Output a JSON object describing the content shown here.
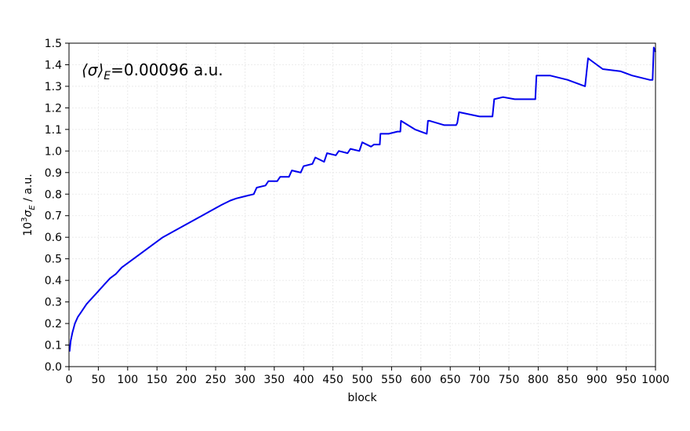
{
  "chart_data": {
    "type": "line",
    "title": "",
    "xlabel": "block",
    "ylabel_prefix": "10",
    "ylabel_exp": "3",
    "ylabel_sigma": "σ",
    "ylabel_sub": "E",
    "ylabel_unit": " / a.u.",
    "annotation": {
      "open": "⟨σ⟩",
      "sub": "E",
      "value": "=0.00096 a.u."
    },
    "xlim": [
      0,
      1000
    ],
    "ylim": [
      0,
      1.5
    ],
    "xticks": [
      0,
      50,
      100,
      150,
      200,
      250,
      300,
      350,
      400,
      450,
      500,
      550,
      600,
      650,
      700,
      750,
      800,
      850,
      900,
      950,
      1000
    ],
    "xtick_labels": [
      "0",
      "50",
      "100",
      "150",
      "200",
      "250",
      "300",
      "350",
      "400",
      "450",
      "500",
      "550",
      "600",
      "650",
      "700",
      "750",
      "800",
      "850",
      "900",
      "950",
      "1000"
    ],
    "yticks": [
      0,
      0.1,
      0.2,
      0.3,
      0.4,
      0.5,
      0.6,
      0.7,
      0.8,
      0.9,
      1.0,
      1.1,
      1.2,
      1.3,
      1.4,
      1.5
    ],
    "ytick_labels": [
      "0.0",
      "0.1",
      "0.2",
      "0.3",
      "0.4",
      "0.5",
      "0.6",
      "0.7",
      "0.8",
      "0.9",
      "1.0",
      "1.1",
      "1.2",
      "1.3",
      "1.4",
      "1.5"
    ],
    "grid": true,
    "series": [
      {
        "color": "#0000ee",
        "x": [
          1,
          3,
          6,
          10,
          15,
          20,
          30,
          40,
          50,
          60,
          70,
          80,
          90,
          100,
          120,
          140,
          160,
          180,
          200,
          220,
          240,
          260,
          275,
          285,
          300,
          315,
          320,
          335,
          340,
          355,
          360,
          375,
          380,
          395,
          400,
          415,
          420,
          435,
          440,
          455,
          460,
          475,
          480,
          495,
          500,
          515,
          520,
          530,
          531,
          545,
          560,
          565,
          566,
          590,
          610,
          612,
          615,
          640,
          660,
          662,
          665,
          700,
          720,
          722,
          725,
          740,
          760,
          790,
          795,
          797,
          820,
          850,
          880,
          885,
          890,
          905,
          910,
          940,
          960,
          990,
          995,
          997,
          1000
        ],
        "y": [
          0.07,
          0.12,
          0.16,
          0.2,
          0.23,
          0.25,
          0.29,
          0.32,
          0.35,
          0.38,
          0.41,
          0.43,
          0.46,
          0.48,
          0.52,
          0.56,
          0.6,
          0.63,
          0.66,
          0.69,
          0.72,
          0.75,
          0.77,
          0.78,
          0.79,
          0.8,
          0.83,
          0.84,
          0.86,
          0.86,
          0.88,
          0.88,
          0.91,
          0.9,
          0.93,
          0.94,
          0.97,
          0.95,
          0.99,
          0.98,
          1.0,
          0.99,
          1.01,
          1.0,
          1.04,
          1.02,
          1.03,
          1.03,
          1.08,
          1.08,
          1.09,
          1.09,
          1.14,
          1.1,
          1.08,
          1.14,
          1.14,
          1.12,
          1.12,
          1.13,
          1.18,
          1.16,
          1.16,
          1.16,
          1.24,
          1.25,
          1.24,
          1.24,
          1.24,
          1.35,
          1.35,
          1.33,
          1.3,
          1.43,
          1.42,
          1.39,
          1.38,
          1.37,
          1.35,
          1.33,
          1.33,
          1.48,
          1.46
        ]
      }
    ]
  }
}
